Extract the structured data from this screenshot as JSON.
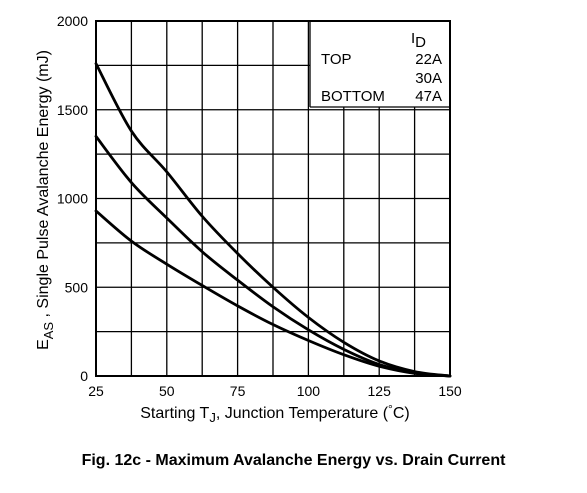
{
  "caption": "Fig. 12c - Maximum Avalanche Energy vs. Drain Current",
  "colors": {
    "line": "#000000",
    "grid": "#000000",
    "background": "#ffffff"
  },
  "chart_data": {
    "type": "line",
    "title": "",
    "xlabel": {
      "prefix": "Starting T",
      "subscript": "J",
      "suffix": ", Junction Temperature  (",
      "degree": "°",
      "unit": "C)"
    },
    "ylabel": {
      "prefix": "E",
      "subscript": "AS",
      "suffix": " , Single Pulse Avalanche Energy (mJ)"
    },
    "xlim": [
      25,
      150
    ],
    "ylim": [
      0,
      2000
    ],
    "x_ticks": [
      "25",
      "50",
      "75",
      "100",
      "125",
      "150"
    ],
    "y_ticks": [
      "0",
      "500",
      "1000",
      "1500",
      "2000"
    ],
    "grid": true,
    "legend": {
      "placement": "top-right",
      "header": {
        "prefix": "I",
        "subscript": "D"
      },
      "rows": [
        {
          "tag": "TOP",
          "value": "22A"
        },
        {
          "tag": "",
          "value": "30A"
        },
        {
          "tag": "BOTTOM",
          "value": "47A"
        }
      ]
    },
    "series": [
      {
        "name": "22A",
        "x": [
          25,
          37.5,
          50,
          62.5,
          75,
          87.5,
          100,
          112.5,
          125,
          137.5,
          150
        ],
        "y": [
          1760,
          1380,
          1150,
          900,
          690,
          500,
          330,
          190,
          85,
          25,
          0
        ]
      },
      {
        "name": "30A",
        "x": [
          25,
          37.5,
          50,
          62.5,
          75,
          87.5,
          100,
          112.5,
          125,
          137.5,
          150
        ],
        "y": [
          1350,
          1090,
          890,
          700,
          540,
          390,
          260,
          150,
          65,
          20,
          0
        ]
      },
      {
        "name": "47A",
        "x": [
          25,
          37.5,
          50,
          62.5,
          75,
          87.5,
          100,
          112.5,
          125,
          137.5,
          150
        ],
        "y": [
          930,
          760,
          630,
          510,
          395,
          290,
          200,
          120,
          55,
          15,
          0
        ]
      }
    ]
  }
}
